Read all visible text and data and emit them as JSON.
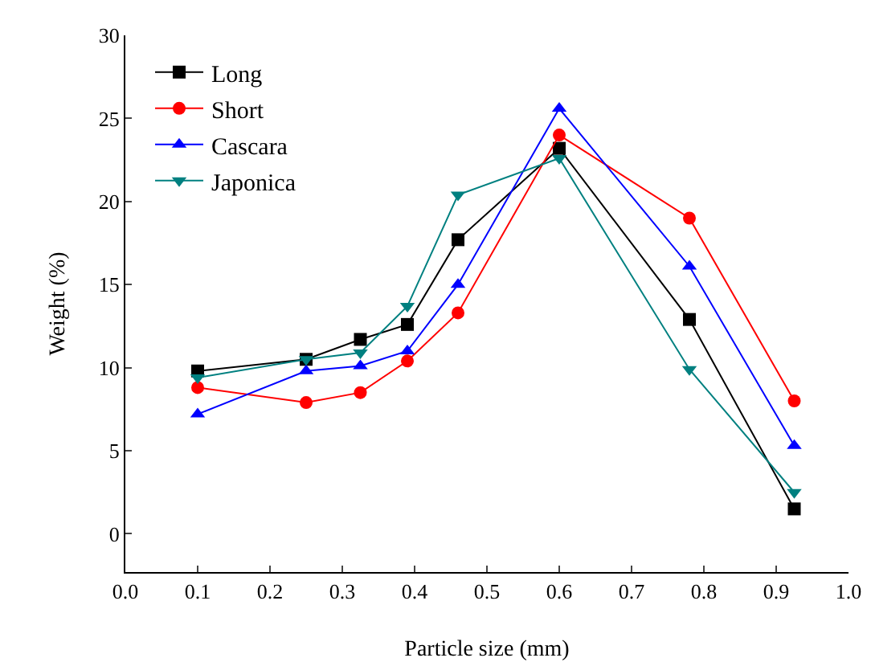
{
  "chart_data": {
    "type": "line",
    "xlabel": "Particle size (mm)",
    "ylabel": "Weight (%)",
    "x": [
      0.1,
      0.25,
      0.325,
      0.39,
      0.46,
      0.6,
      0.78,
      0.925
    ],
    "series": [
      {
        "name": "Long",
        "color": "#000000",
        "marker": "square",
        "values": [
          9.8,
          10.5,
          11.7,
          12.6,
          17.7,
          23.2,
          12.9,
          1.5
        ]
      },
      {
        "name": "Short",
        "color": "#ff0000",
        "marker": "circle",
        "values": [
          8.8,
          7.9,
          8.5,
          10.4,
          13.3,
          24.0,
          19.0,
          8.0
        ]
      },
      {
        "name": "Cascara",
        "color": "#0000ff",
        "marker": "triangle",
        "values": [
          7.2,
          9.8,
          10.1,
          11.0,
          15.0,
          25.6,
          16.1,
          5.3
        ]
      },
      {
        "name": "Japonica",
        "color": "#008080",
        "marker": "triangle-down",
        "values": [
          9.4,
          10.5,
          10.9,
          13.7,
          20.4,
          22.6,
          9.9,
          2.5
        ]
      }
    ],
    "xlim": [
      0,
      1.0
    ],
    "xticks": [
      {
        "value": 0,
        "label": "0.0"
      },
      0.1,
      0.2,
      0.3,
      0.4,
      0.5,
      0.6,
      0.7,
      0.8,
      0.9,
      {
        "value": 1,
        "label": "1.0"
      }
    ],
    "ylim": [
      -2.3,
      30
    ],
    "yticks": [
      0,
      5,
      10,
      15,
      20,
      25,
      30
    ],
    "grid": false,
    "legend": "top left",
    "line_style": "solid"
  }
}
